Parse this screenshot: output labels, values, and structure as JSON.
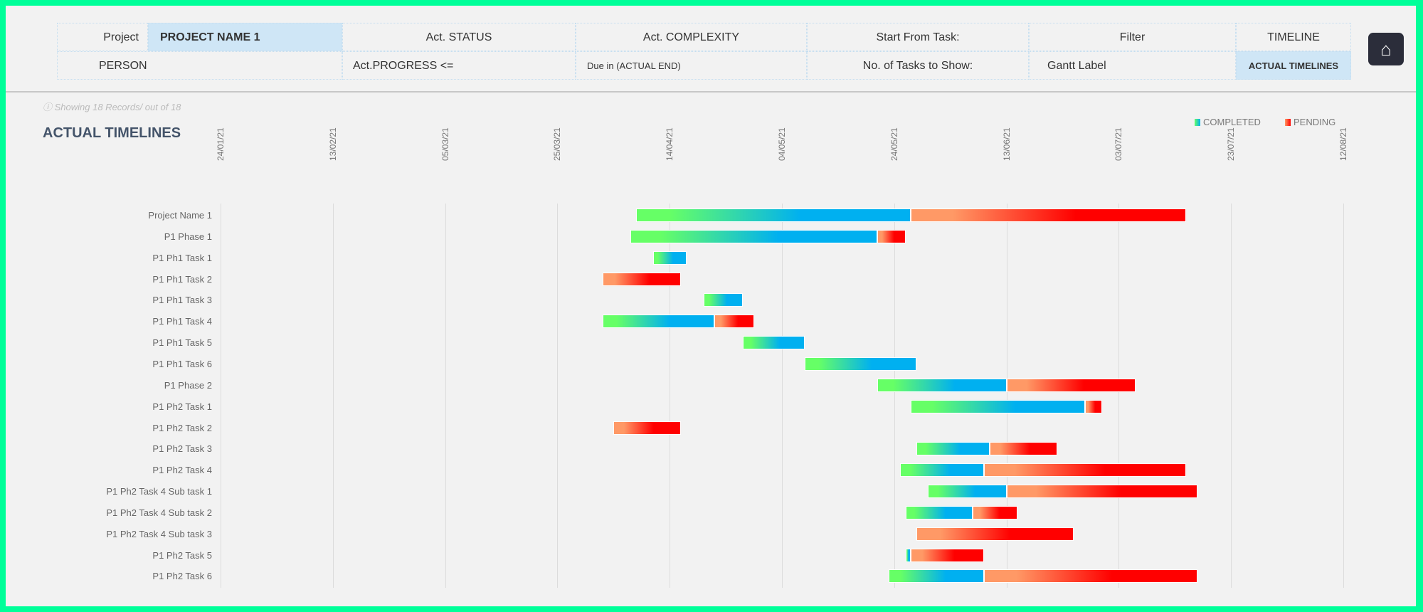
{
  "filters": {
    "project_label": "Project",
    "project_value": "PROJECT NAME 1",
    "status_label": "Act. STATUS",
    "complexity_label": "Act. COMPLEXITY",
    "start_from_label": "Start From Task:",
    "filter_label": "Filter",
    "timeline_label": "TIMELINE",
    "person_label": "PERSON",
    "progress_label": "Act.PROGRESS <=",
    "due_label": "Due in (ACTUAL END)",
    "tasks_to_show_label": "No. of Tasks to Show:",
    "gantt_label": "Gantt Label",
    "gantt_value": "ACTUAL TIMELINES"
  },
  "home_icon": "home-icon",
  "records_info": "Showing 18 Records/ out of 18",
  "chart_title": "ACTUAL TIMELINES",
  "legend": {
    "completed": "COMPLETED",
    "pending": "PENDING",
    "completed_colors": [
      "#66ff66",
      "#00b0f0"
    ],
    "pending_colors": [
      "#ff9966",
      "#ff0000"
    ]
  },
  "chart_data": {
    "type": "gantt",
    "x_ticks": [
      "24/01/21",
      "13/02/21",
      "05/03/21",
      "25/03/21",
      "14/04/21",
      "04/05/21",
      "24/05/21",
      "13/06/21",
      "03/07/21",
      "23/07/21",
      "12/08/21"
    ],
    "xlim": [
      "2021-01-24",
      "2021-08-12"
    ],
    "grid": true,
    "legend_position": "top-right",
    "tasks": [
      {
        "name": "Project Name 1",
        "start": "2021-04-08",
        "completed_to": "2021-05-27",
        "end": "2021-07-15"
      },
      {
        "name": "P1 Phase 1",
        "start": "2021-04-07",
        "completed_to": "2021-05-21",
        "end": "2021-05-26"
      },
      {
        "name": "P1 Ph1 Task 1",
        "start": "2021-04-11",
        "completed_to": "2021-04-17",
        "end": "2021-04-17"
      },
      {
        "name": "P1 Ph1 Task 2",
        "start": "2021-04-02",
        "completed_to": "2021-04-02",
        "end": "2021-04-16"
      },
      {
        "name": "P1 Ph1 Task 3",
        "start": "2021-04-20",
        "completed_to": "2021-04-27",
        "end": "2021-04-27"
      },
      {
        "name": "P1 Ph1 Task 4",
        "start": "2021-04-02",
        "completed_to": "2021-04-22",
        "end": "2021-04-29"
      },
      {
        "name": "P1 Ph1 Task 5",
        "start": "2021-04-27",
        "completed_to": "2021-05-08",
        "end": "2021-05-08"
      },
      {
        "name": "P1 Ph1 Task 6",
        "start": "2021-05-08",
        "completed_to": "2021-05-28",
        "end": "2021-05-28"
      },
      {
        "name": "P1 Phase 2",
        "start": "2021-05-21",
        "completed_to": "2021-06-13",
        "end": "2021-07-06"
      },
      {
        "name": "P1 Ph2 Task 1",
        "start": "2021-05-27",
        "completed_to": "2021-06-27",
        "end": "2021-06-30"
      },
      {
        "name": "P1 Ph2 Task 2",
        "start": "2021-04-04",
        "completed_to": "2021-04-04",
        "end": "2021-04-16"
      },
      {
        "name": "P1 Ph2 Task 3",
        "start": "2021-05-28",
        "completed_to": "2021-06-10",
        "end": "2021-06-22"
      },
      {
        "name": "P1 Ph2 Task 4",
        "start": "2021-05-25",
        "completed_to": "2021-06-09",
        "end": "2021-07-15"
      },
      {
        "name": "P1 Ph2 Task 4 Sub task 1",
        "start": "2021-05-30",
        "completed_to": "2021-06-13",
        "end": "2021-07-17"
      },
      {
        "name": "P1 Ph2 Task 4 Sub task 2",
        "start": "2021-05-26",
        "completed_to": "2021-06-07",
        "end": "2021-06-15"
      },
      {
        "name": "P1 Ph2 Task 4 Sub task 3",
        "start": "2021-05-28",
        "completed_to": "2021-05-28",
        "end": "2021-06-25"
      },
      {
        "name": "P1 Ph2 Task 5",
        "start": "2021-05-26",
        "completed_to": "2021-05-27",
        "end": "2021-06-09"
      },
      {
        "name": "P1 Ph2 Task 6",
        "start": "2021-05-23",
        "completed_to": "2021-06-09",
        "end": "2021-07-17"
      }
    ]
  }
}
